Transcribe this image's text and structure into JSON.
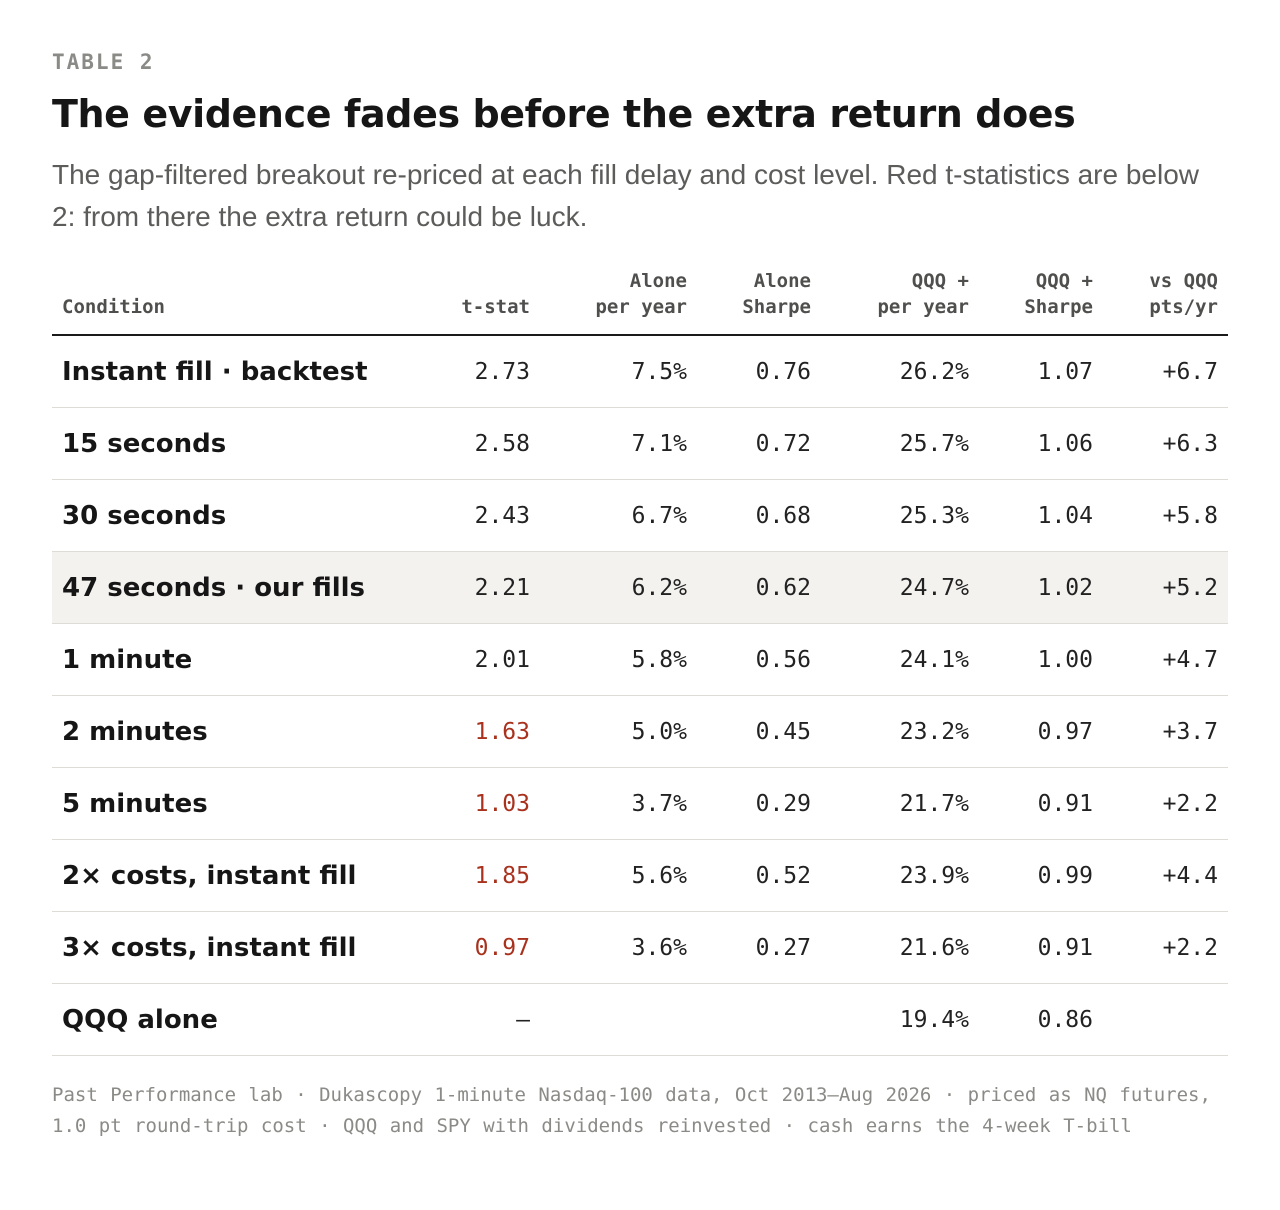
{
  "eyebrow": "TABLE 2",
  "title": "The evidence fades before the extra return does",
  "subtitle": "The gap-filtered breakout re-priced at each fill delay and cost level. Red t-statistics are below 2: from there the extra return could be luck.",
  "table": {
    "headers": [
      "Condition",
      "t-stat",
      "Alone\nper year",
      "Alone\nSharpe",
      "QQQ +\nper year",
      "QQQ +\nSharpe",
      "vs QQQ\npts/yr"
    ],
    "rows": [
      {
        "cells": [
          "Instant fill · backtest",
          "2.73",
          "7.5%",
          "0.76",
          "26.2%",
          "1.07",
          "+6.7"
        ],
        "red_tstat": false,
        "highlight": false
      },
      {
        "cells": [
          "15 seconds",
          "2.58",
          "7.1%",
          "0.72",
          "25.7%",
          "1.06",
          "+6.3"
        ],
        "red_tstat": false,
        "highlight": false
      },
      {
        "cells": [
          "30 seconds",
          "2.43",
          "6.7%",
          "0.68",
          "25.3%",
          "1.04",
          "+5.8"
        ],
        "red_tstat": false,
        "highlight": false
      },
      {
        "cells": [
          "47 seconds · our fills",
          "2.21",
          "6.2%",
          "0.62",
          "24.7%",
          "1.02",
          "+5.2"
        ],
        "red_tstat": false,
        "highlight": true
      },
      {
        "cells": [
          "1 minute",
          "2.01",
          "5.8%",
          "0.56",
          "24.1%",
          "1.00",
          "+4.7"
        ],
        "red_tstat": false,
        "highlight": false
      },
      {
        "cells": [
          "2 minutes",
          "1.63",
          "5.0%",
          "0.45",
          "23.2%",
          "0.97",
          "+3.7"
        ],
        "red_tstat": true,
        "highlight": false
      },
      {
        "cells": [
          "5 minutes",
          "1.03",
          "3.7%",
          "0.29",
          "21.7%",
          "0.91",
          "+2.2"
        ],
        "red_tstat": true,
        "highlight": false
      },
      {
        "cells": [
          "2× costs, instant fill",
          "1.85",
          "5.6%",
          "0.52",
          "23.9%",
          "0.99",
          "+4.4"
        ],
        "red_tstat": true,
        "highlight": false
      },
      {
        "cells": [
          "3× costs, instant fill",
          "0.97",
          "3.6%",
          "0.27",
          "21.6%",
          "0.91",
          "+2.2"
        ],
        "red_tstat": true,
        "highlight": false
      },
      {
        "cells": [
          "QQQ alone",
          "—",
          "",
          "",
          "19.4%",
          "0.86",
          ""
        ],
        "red_tstat": false,
        "highlight": false
      }
    ]
  },
  "footnote": "Past Performance lab · Dukascopy 1-minute Nasdaq-100 data, Oct 2013–Aug 2026 · priced as NQ futures, 1.0 pt round-trip cost · QQQ and SPY with dividends reinvested · cash earns the 4-week T-bill",
  "colors": {
    "red_tstat": "#a8321e",
    "highlight_row": "#f3f2ef",
    "rule": "#1a1a1a",
    "muted": "#8a8a86"
  }
}
